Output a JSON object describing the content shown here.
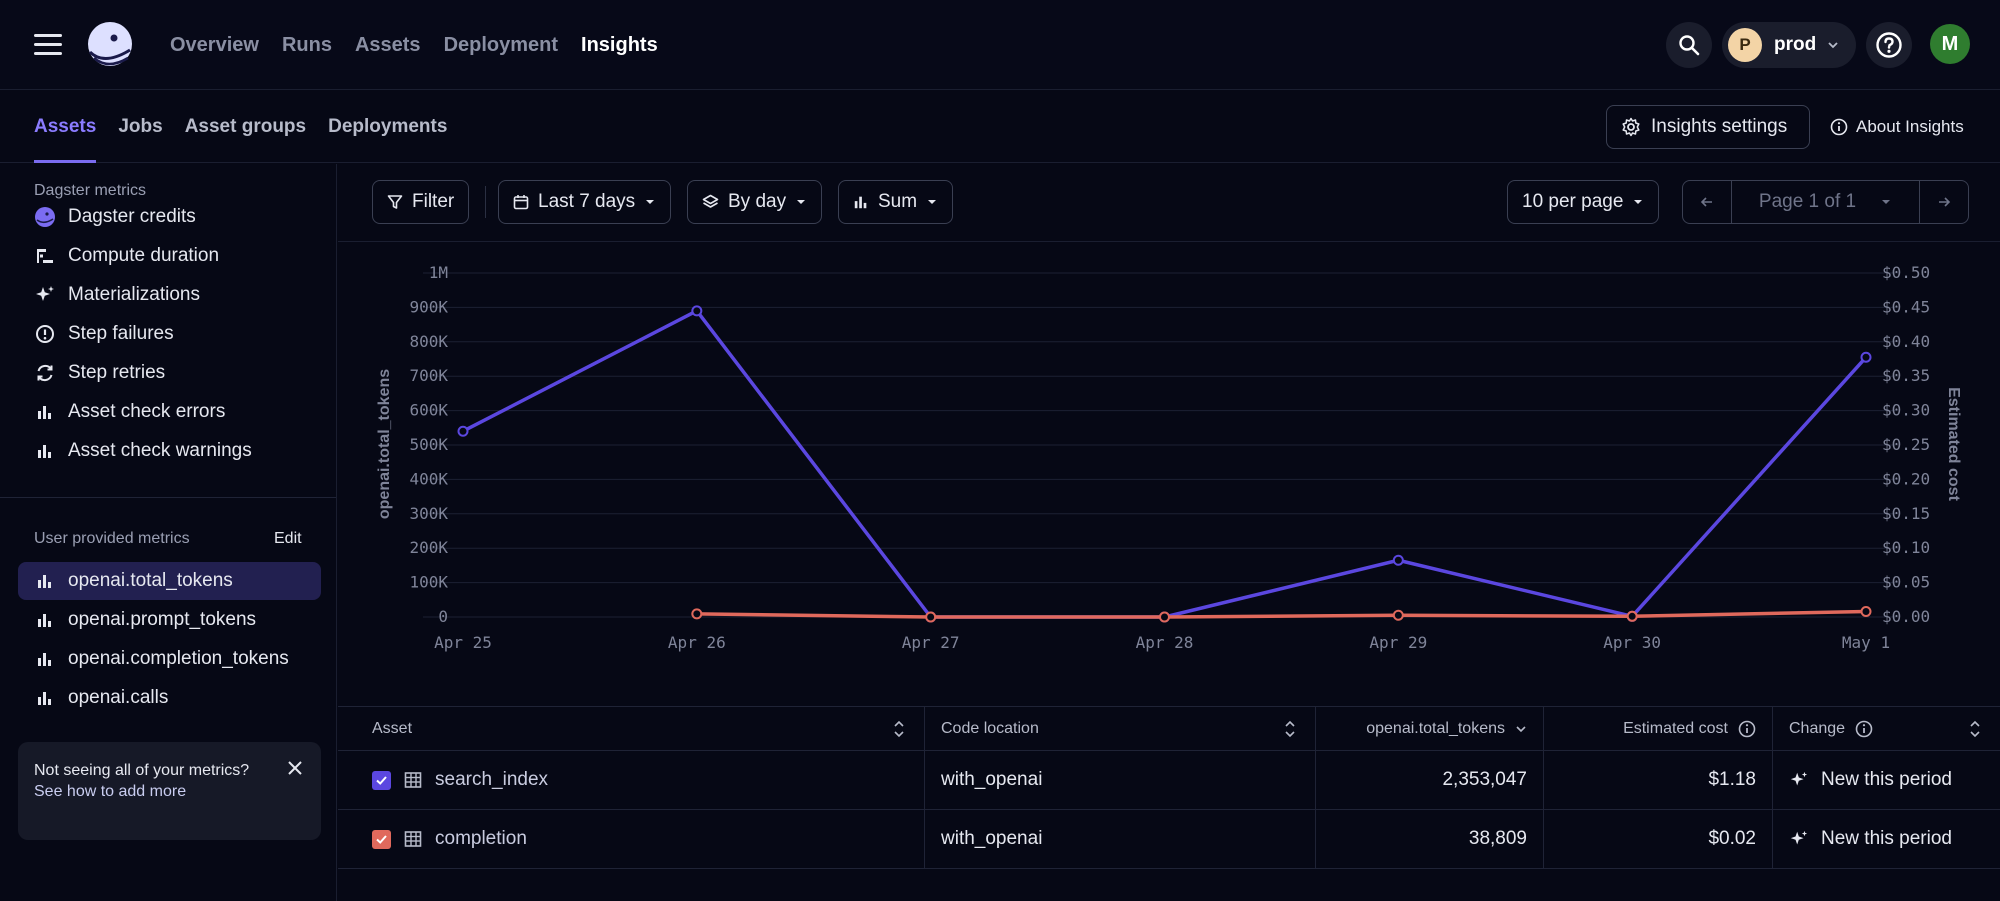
{
  "nav": {
    "items": [
      {
        "label": "Overview",
        "active": false
      },
      {
        "label": "Runs",
        "active": false
      },
      {
        "label": "Assets",
        "active": false
      },
      {
        "label": "Deployment",
        "active": false
      },
      {
        "label": "Insights",
        "active": true
      }
    ],
    "deployment": {
      "initial": "P",
      "label": "prod"
    },
    "user_initial": "M"
  },
  "subtabs": [
    {
      "label": "Assets",
      "active": true
    },
    {
      "label": "Jobs",
      "active": false
    },
    {
      "label": "Asset groups",
      "active": false
    },
    {
      "label": "Deployments",
      "active": false
    }
  ],
  "header_actions": {
    "settings_label": "Insights settings",
    "about_label": "About Insights"
  },
  "sidebar": {
    "dagster_label": "Dagster metrics",
    "dagster_metrics": [
      {
        "label": "Dagster credits",
        "icon": "dagster-logo-icon"
      },
      {
        "label": "Compute duration",
        "icon": "gantt-icon"
      },
      {
        "label": "Materializations",
        "icon": "sparkle-icon"
      },
      {
        "label": "Step failures",
        "icon": "warning-circle-icon"
      },
      {
        "label": "Step retries",
        "icon": "retry-icon"
      },
      {
        "label": "Asset check errors",
        "icon": "bar-chart-icon"
      },
      {
        "label": "Asset check warnings",
        "icon": "bar-chart-icon"
      }
    ],
    "user_label": "User provided metrics",
    "edit_label": "Edit",
    "user_metrics": [
      {
        "label": "openai.total_tokens",
        "selected": true
      },
      {
        "label": "openai.prompt_tokens",
        "selected": false
      },
      {
        "label": "openai.completion_tokens",
        "selected": false
      },
      {
        "label": "openai.calls",
        "selected": false
      }
    ],
    "hint": {
      "text": "Not seeing all of your metrics?",
      "link": "See how to add more"
    }
  },
  "toolbar": {
    "filter": "Filter",
    "range": "Last 7 days",
    "grouping": "By day",
    "aggregation": "Sum",
    "per_page": "10 per page",
    "page": "Page 1 of 1"
  },
  "chart_data": {
    "type": "line",
    "x": [
      "Apr 25",
      "Apr 26",
      "Apr 27",
      "Apr 28",
      "Apr 29",
      "Apr 30",
      "May 1"
    ],
    "ylabel": "openai.total_tokens",
    "y2label": "Estimated cost",
    "ylim": [
      0,
      1000000
    ],
    "y2lim": [
      0,
      0.5
    ],
    "y_ticks": [
      "0",
      "100K",
      "200K",
      "300K",
      "400K",
      "500K",
      "600K",
      "700K",
      "800K",
      "900K",
      "1M"
    ],
    "y2_ticks": [
      "$0.00",
      "$0.05",
      "$0.10",
      "$0.15",
      "$0.20",
      "$0.25",
      "$0.30",
      "$0.35",
      "$0.40",
      "$0.45",
      "$0.50"
    ],
    "grid": true,
    "series": [
      {
        "name": "search_index",
        "color": "#5b47e0",
        "values": [
          540000,
          890000,
          0,
          0,
          165000,
          2000,
          755000
        ]
      },
      {
        "name": "completion",
        "color": "#e0695c",
        "values": [
          null,
          9000,
          0,
          0,
          5000,
          2000,
          16000
        ]
      }
    ]
  },
  "table": {
    "headers": [
      "Asset",
      "Code location",
      "openai.total_tokens",
      "Estimated cost",
      "Change"
    ],
    "rows": [
      {
        "asset": "search_index",
        "color": "#5b47e0",
        "location": "with_openai",
        "tokens": "2,353,047",
        "cost": "$1.18",
        "change": "New this period"
      },
      {
        "asset": "completion",
        "color": "#e0695c",
        "location": "with_openai",
        "tokens": "38,809",
        "cost": "$0.02",
        "change": "New this period"
      }
    ]
  }
}
